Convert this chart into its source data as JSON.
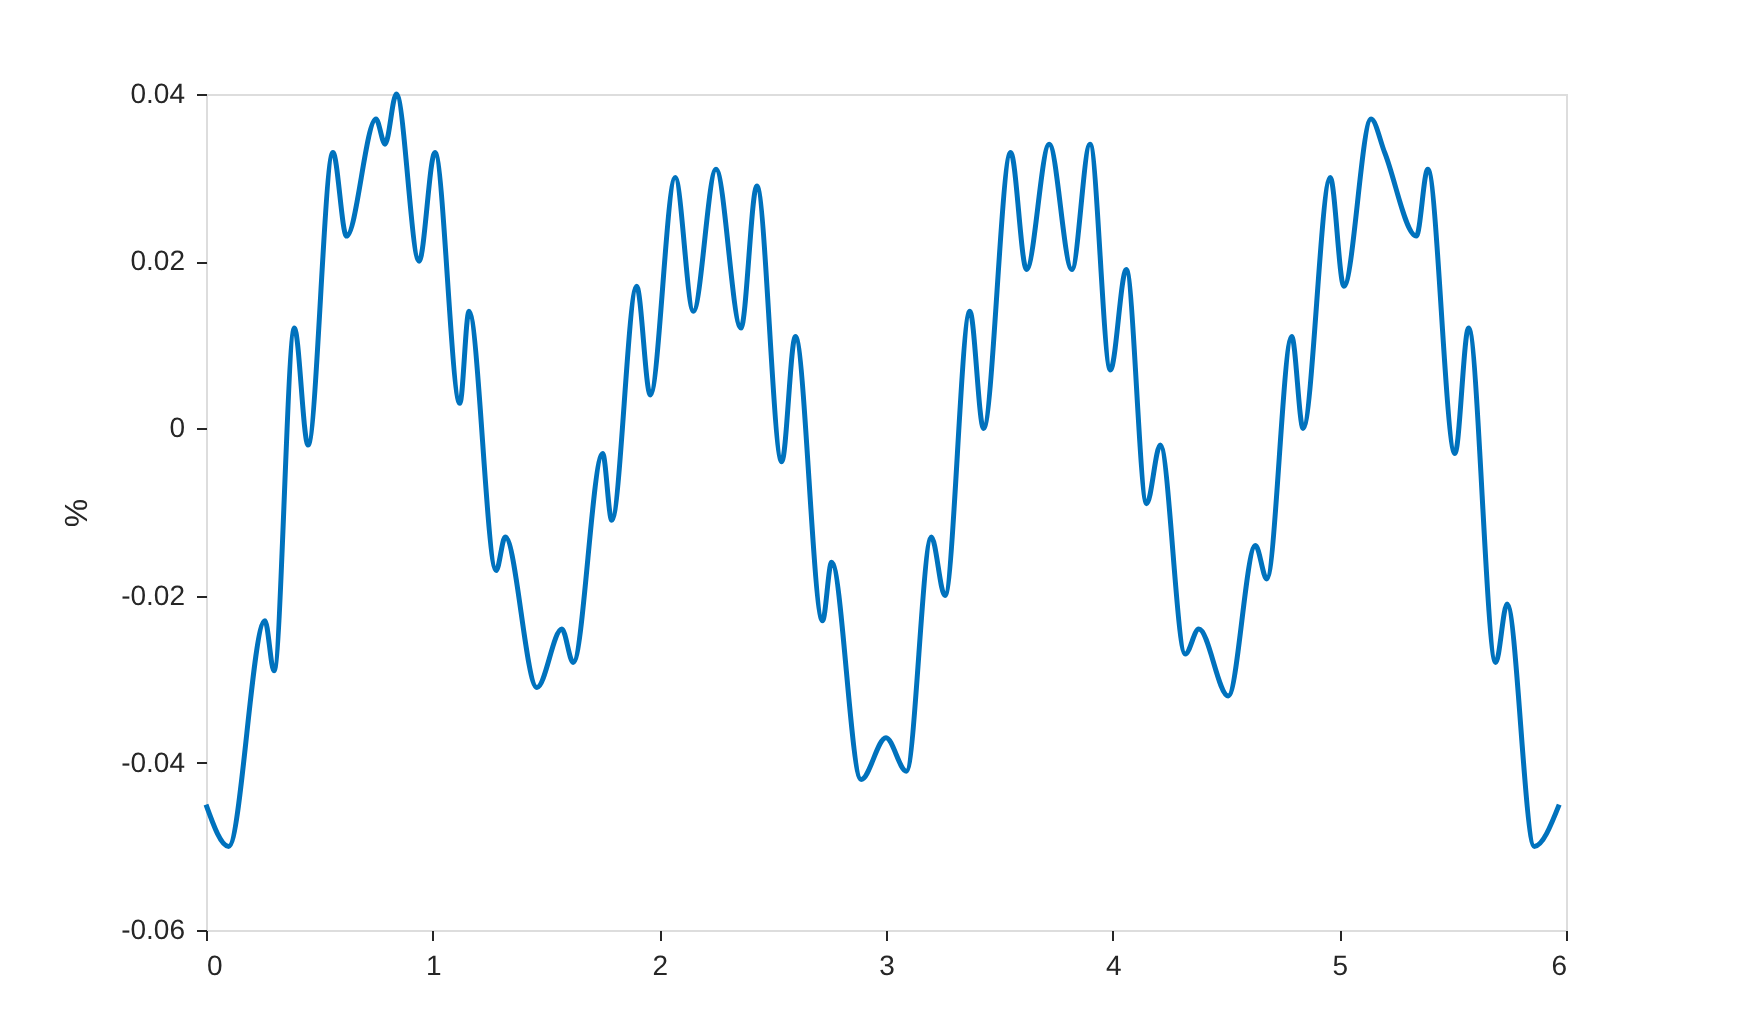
{
  "chart_data": {
    "type": "line",
    "ylabel": "%",
    "xlim": [
      0,
      6
    ],
    "xticks": [
      0,
      1,
      2,
      3,
      4,
      5,
      6
    ],
    "ylim": [
      -0.06,
      0.04
    ],
    "yticks": [
      {
        "value": -0.06,
        "label": "-0.06"
      },
      {
        "value": -0.04,
        "label": "-0.04"
      },
      {
        "value": -0.02,
        "label": "-0.02"
      },
      0,
      {
        "value": 0.02,
        "label": "0.02"
      },
      {
        "value": 0.04,
        "label": "0.04"
      }
    ],
    "grid": false,
    "marker": "none",
    "line_style": "solid",
    "series": [
      {
        "color": "#0072bd",
        "x": [
          0,
          0.1,
          0.26,
          0.3,
          0.39,
          0.45,
          0.56,
          0.62,
          0.75,
          0.79,
          0.84,
          0.94,
          1.01,
          1.12,
          1.16,
          1.28,
          1.32,
          1.46,
          1.57,
          1.62,
          1.75,
          1.79,
          1.9,
          1.96,
          2.07,
          2.15,
          2.25,
          2.36,
          2.43,
          2.54,
          2.6,
          2.72,
          2.76,
          2.89,
          3.0,
          3.09,
          3.2,
          3.26,
          3.37,
          3.43,
          3.55,
          3.62,
          3.72,
          3.82,
          3.9,
          3.99,
          4.06,
          4.15,
          4.21,
          4.32,
          4.38,
          4.51,
          4.63,
          4.68,
          4.79,
          4.84,
          4.96,
          5.02,
          5.14,
          5.2,
          5.34,
          5.39,
          5.51,
          5.57,
          5.69,
          5.74,
          5.86,
          5.97
        ],
        "values": [
          -0.045,
          -0.05,
          -0.023,
          -0.029,
          0.012,
          -0.002,
          0.033,
          0.023,
          0.037,
          0.034,
          0.04,
          0.02,
          0.033,
          0.003,
          0.014,
          -0.017,
          -0.013,
          -0.031,
          -0.024,
          -0.028,
          -0.003,
          -0.011,
          0.017,
          0.004,
          0.03,
          0.014,
          0.031,
          0.012,
          0.029,
          -0.004,
          0.011,
          -0.023,
          -0.016,
          -0.042,
          -0.037,
          -0.041,
          -0.013,
          -0.02,
          0.014,
          0.0,
          0.033,
          0.019,
          0.034,
          0.019,
          0.034,
          0.007,
          0.019,
          -0.009,
          -0.002,
          -0.027,
          -0.024,
          -0.032,
          -0.014,
          -0.018,
          0.011,
          0.0,
          0.03,
          0.017,
          0.037,
          0.033,
          0.023,
          0.031,
          -0.003,
          0.012,
          -0.028,
          -0.021,
          -0.05,
          -0.045
        ]
      }
    ]
  }
}
